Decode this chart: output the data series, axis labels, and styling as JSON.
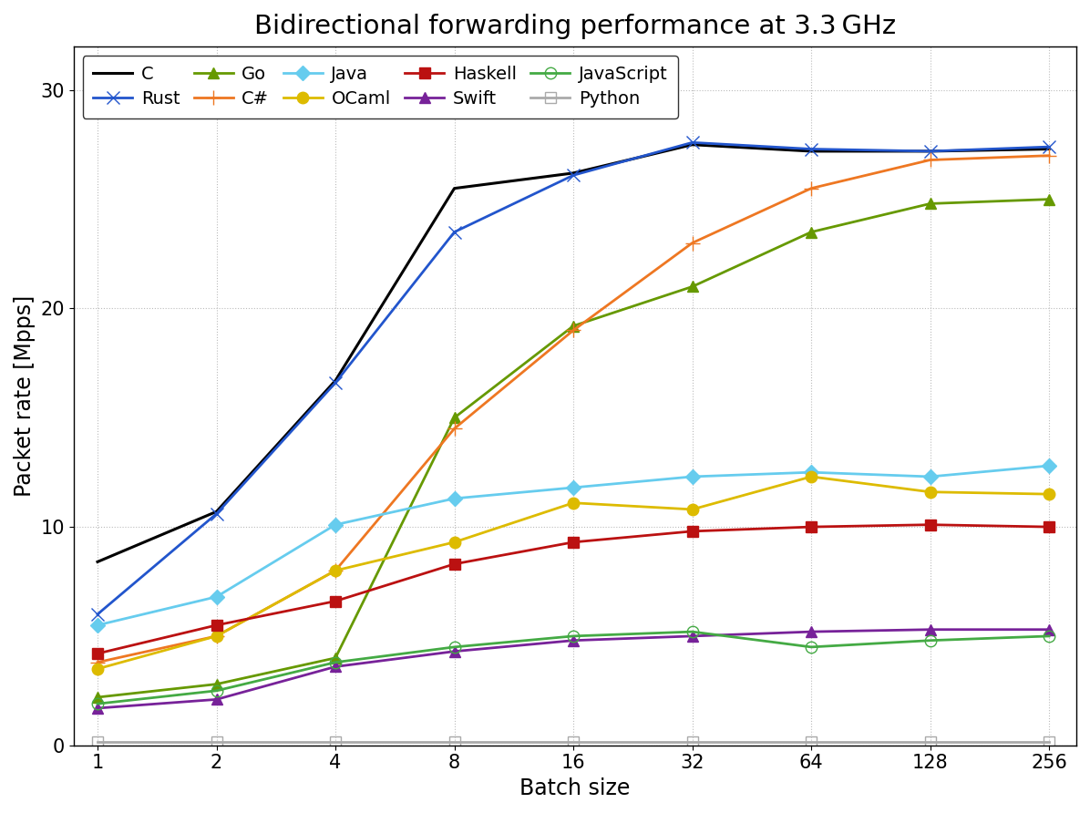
{
  "title": "Bidirectional forwarding performance at 3.3 GHz",
  "xlabel": "Batch size",
  "ylabel": "Packet rate [Mpps]",
  "x_values": [
    1,
    2,
    4,
    8,
    16,
    32,
    64,
    128,
    256
  ],
  "x_labels": [
    "1",
    "2",
    "4",
    "8",
    "16",
    "32",
    "64",
    "128",
    "256"
  ],
  "ylim": [
    0,
    32
  ],
  "yticks": [
    0,
    10,
    20,
    30
  ],
  "series": [
    {
      "label": "C",
      "color": "#000000",
      "marker": "None",
      "linestyle": "-",
      "linewidth": 2.2,
      "markersize": 8,
      "markerfacecolor": null,
      "values": [
        8.4,
        10.7,
        16.7,
        25.5,
        26.2,
        27.5,
        27.2,
        27.2,
        27.3
      ]
    },
    {
      "label": "Rust",
      "color": "#2255cc",
      "marker": "x",
      "linestyle": "-",
      "linewidth": 2.0,
      "markersize": 10,
      "markerfacecolor": null,
      "values": [
        6.0,
        10.6,
        16.6,
        23.5,
        26.1,
        27.6,
        27.3,
        27.2,
        27.4
      ]
    },
    {
      "label": "Go",
      "color": "#669900",
      "marker": "^",
      "linestyle": "-",
      "linewidth": 2.0,
      "markersize": 9,
      "markerfacecolor": null,
      "values": [
        2.2,
        2.8,
        4.0,
        15.0,
        19.2,
        21.0,
        23.5,
        24.8,
        25.0
      ]
    },
    {
      "label": "C#",
      "color": "#ee7722",
      "marker": "+",
      "linestyle": "-",
      "linewidth": 2.0,
      "markersize": 11,
      "markerfacecolor": null,
      "values": [
        3.8,
        5.0,
        8.0,
        14.5,
        19.0,
        23.0,
        25.5,
        26.8,
        27.0
      ]
    },
    {
      "label": "Java",
      "color": "#66ccee",
      "marker": "D",
      "linestyle": "-",
      "linewidth": 2.0,
      "markersize": 8,
      "markerfacecolor": null,
      "values": [
        5.5,
        6.8,
        10.1,
        11.3,
        11.8,
        12.3,
        12.5,
        12.3,
        12.8
      ]
    },
    {
      "label": "OCaml",
      "color": "#ddbb00",
      "marker": "o",
      "linestyle": "-",
      "linewidth": 2.0,
      "markersize": 9,
      "markerfacecolor": null,
      "values": [
        3.5,
        5.0,
        8.0,
        9.3,
        11.1,
        10.8,
        12.3,
        11.6,
        11.5
      ]
    },
    {
      "label": "Haskell",
      "color": "#bb1111",
      "marker": "s",
      "linestyle": "-",
      "linewidth": 2.0,
      "markersize": 9,
      "markerfacecolor": null,
      "values": [
        4.2,
        5.5,
        6.6,
        8.3,
        9.3,
        9.8,
        10.0,
        10.1,
        10.0
      ]
    },
    {
      "label": "Swift",
      "color": "#772299",
      "marker": "^",
      "linestyle": "-",
      "linewidth": 2.0,
      "markersize": 9,
      "markerfacecolor": null,
      "values": [
        1.7,
        2.1,
        3.6,
        4.3,
        4.8,
        5.0,
        5.2,
        5.3,
        5.3
      ]
    },
    {
      "label": "JavaScript",
      "color": "#44aa44",
      "marker": "o",
      "linestyle": "-",
      "linewidth": 2.0,
      "markersize": 9,
      "markerfacecolor": "none",
      "values": [
        1.9,
        2.5,
        3.8,
        4.5,
        5.0,
        5.2,
        4.5,
        4.8,
        5.0
      ]
    },
    {
      "label": "Python",
      "color": "#aaaaaa",
      "marker": "s",
      "linestyle": "-",
      "linewidth": 2.0,
      "markersize": 9,
      "markerfacecolor": "none",
      "values": [
        0.15,
        0.15,
        0.15,
        0.15,
        0.15,
        0.15,
        0.15,
        0.15,
        0.15
      ]
    }
  ],
  "grid_color": "#bbbbbb",
  "grid_linestyle": ":",
  "background_color": "#ffffff"
}
